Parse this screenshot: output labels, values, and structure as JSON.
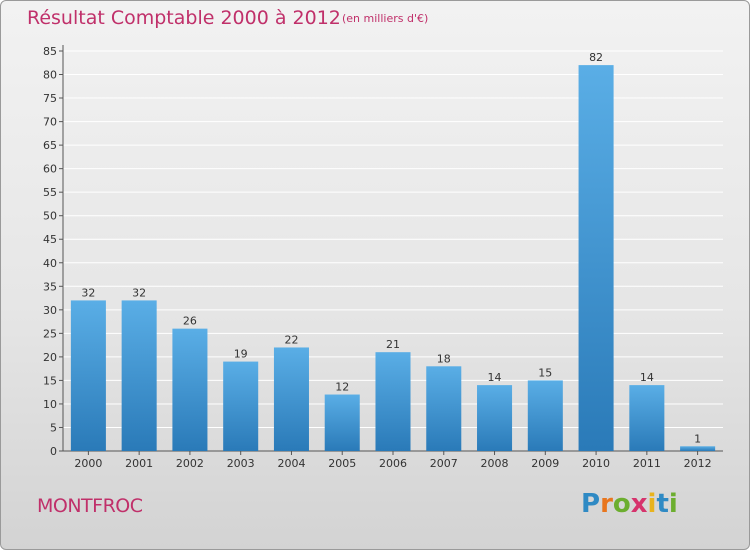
{
  "header": {
    "title": "Résultat Comptable 2000 à 2012",
    "subtitle": "(en milliers d'€)"
  },
  "footer": {
    "commune": "MONTFROC",
    "logo": {
      "letters": [
        "P",
        "r",
        "o",
        "x",
        "i",
        "t",
        "i"
      ],
      "colors": [
        "#2f8ac4",
        "#e8761e",
        "#6cae2f",
        "#d6336c",
        "#e8b31e",
        "#2f8ac4",
        "#6cae2f"
      ]
    }
  },
  "chart_data": {
    "type": "bar",
    "title": "Résultat Comptable 2000 à 2012",
    "subtitle": "(en milliers d'€)",
    "xlabel": "",
    "ylabel": "",
    "categories": [
      "2000",
      "2001",
      "2002",
      "2003",
      "2004",
      "2005",
      "2006",
      "2007",
      "2008",
      "2009",
      "2010",
      "2011",
      "2012"
    ],
    "values": [
      32,
      32,
      26,
      19,
      22,
      12,
      21,
      18,
      14,
      15,
      82,
      14,
      1
    ],
    "ylim": [
      0,
      85
    ],
    "yticks": [
      0,
      5,
      10,
      15,
      20,
      25,
      30,
      35,
      40,
      45,
      50,
      55,
      60,
      65,
      70,
      75,
      80,
      85
    ],
    "grid": true,
    "colors": {
      "bar_light": "#5aaee6",
      "bar_dark": "#2a7ab8",
      "axis": "#555555",
      "grid": "#ffffff"
    }
  }
}
